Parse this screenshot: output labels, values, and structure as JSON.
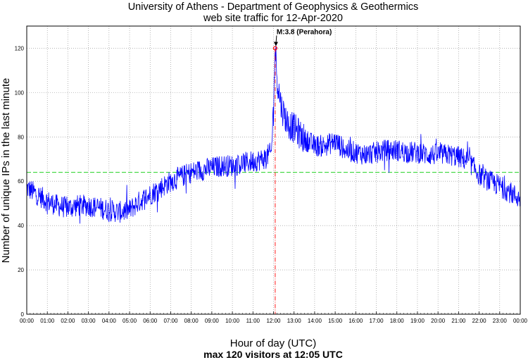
{
  "chart_data": {
    "type": "line",
    "title": "University of Athens - Department of Geophysics & Geothermics",
    "subtitle": "web site traffic for 12-Apr-2020",
    "xlabel": "Hour of day (UTC)",
    "ylabel": "Number of unique IPs in the last minute",
    "footer": "max 120 visitors at 12:05 UTC",
    "xlim": [
      0,
      24
    ],
    "ylim": [
      0,
      130
    ],
    "x_tick_labels": [
      "00:00",
      "01:00",
      "02:00",
      "03:00",
      "04:00",
      "05:00",
      "06:00",
      "07:00",
      "08:00",
      "09:00",
      "10:00",
      "11:00",
      "12:00",
      "13:00",
      "14:00",
      "15:00",
      "16:00",
      "17:00",
      "18:00",
      "19:00",
      "20:00",
      "21:00",
      "22:00",
      "23:00",
      "00:00"
    ],
    "y_ticks": [
      0,
      20,
      40,
      60,
      80,
      100,
      120
    ],
    "y_tick_labels": [
      "0",
      "20",
      "40",
      "60",
      "80",
      "100",
      "120"
    ],
    "grid": true,
    "mean_line": 64,
    "event_marker": {
      "hour": 12.083,
      "value": 120,
      "label": "M:3.8 (Perahora)"
    },
    "series": [
      {
        "name": "unique IPs per minute",
        "color": "#0000ff",
        "x": [
          0,
          0.5,
          1,
          1.5,
          2,
          2.5,
          3,
          3.5,
          4,
          4.5,
          5,
          5.5,
          6,
          6.5,
          7,
          7.5,
          8,
          8.5,
          9,
          9.5,
          10,
          10.5,
          11,
          11.5,
          11.9,
          12.0,
          12.083,
          12.2,
          12.4,
          12.7,
          13,
          13.5,
          14,
          14.5,
          15,
          15.5,
          16,
          16.5,
          17,
          17.5,
          18,
          18.5,
          19,
          19.5,
          20,
          20.5,
          21,
          21.5,
          22,
          22.5,
          23,
          23.5,
          24
        ],
        "values": [
          57,
          54,
          51,
          49,
          48,
          49,
          49,
          48,
          47,
          46,
          47,
          51,
          54,
          57,
          60,
          62,
          64,
          65,
          66,
          67,
          67,
          68,
          69,
          70,
          73,
          95,
          120,
          104,
          93,
          86,
          84,
          79,
          76,
          76,
          78,
          74,
          73,
          72,
          73,
          74,
          74,
          73,
          73,
          72,
          72,
          72,
          71,
          69,
          63,
          60,
          58,
          55,
          52
        ]
      }
    ],
    "annotation_color": "#ff0000",
    "mean_line_color": "#00cc00"
  }
}
